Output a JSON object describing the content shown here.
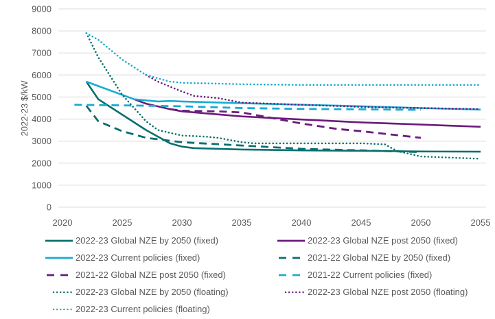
{
  "chart_data": {
    "type": "line",
    "title": "",
    "xlabel": "",
    "ylabel": "2022-23 $/kW",
    "xlim": [
      2020,
      2055
    ],
    "ylim": [
      0,
      9000
    ],
    "x_ticks": [
      "2020",
      "2025",
      "2030",
      "2035",
      "2040",
      "2045",
      "2050",
      "2055"
    ],
    "y_ticks": [
      "0",
      "1000",
      "2000",
      "3000",
      "4000",
      "5000",
      "6000",
      "7000",
      "8000",
      "9000"
    ],
    "grid": "horizontal",
    "legend_position": "bottom",
    "colors": {
      "dark_teal": "#0b6e6e",
      "light_blue": "#1aaad0",
      "purple": "#6a1b7c"
    },
    "series": [
      {
        "name": "2022-23 Global NZE by 2050 (fixed)",
        "color": "#0b6e6e",
        "style": "solid",
        "x": [
          2022,
          2023,
          2025,
          2027,
          2029,
          2030,
          2031,
          2035,
          2040,
          2045,
          2050,
          2055
        ],
        "values": [
          5700,
          4900,
          4200,
          3500,
          2900,
          2750,
          2680,
          2620,
          2580,
          2560,
          2530,
          2520
        ]
      },
      {
        "name": "2022-23 Global NZE post 2050 (fixed)",
        "color": "#6a1b7c",
        "style": "solid",
        "x": [
          2026,
          2027,
          2029,
          2030,
          2035,
          2040,
          2045,
          2050,
          2055
        ],
        "values": [
          4900,
          4700,
          4450,
          4350,
          4120,
          3980,
          3850,
          3750,
          3650
        ]
      },
      {
        "name": "2022-23 Current policies (fixed)",
        "color": "#1aaad0",
        "style": "solid",
        "x": [
          2022,
          2026,
          2028,
          2029,
          2030,
          2035,
          2040,
          2045,
          2050,
          2055
        ],
        "values": [
          5700,
          4900,
          4800,
          4820,
          4800,
          4720,
          4650,
          4580,
          4500,
          4430
        ]
      },
      {
        "name": "2021-22 Global NZE by 2050 (fixed)",
        "color": "#0b6e6e",
        "style": "dashed",
        "x": [
          2022,
          2023,
          2025,
          2027,
          2030,
          2035,
          2040,
          2045,
          2050
        ],
        "values": [
          4600,
          3900,
          3450,
          3150,
          2950,
          2800,
          2650,
          2580,
          2500
        ]
      },
      {
        "name": "2021-22 Global NZE post 2050 (fixed)",
        "color": "#6a1b7c",
        "style": "dashed",
        "x": [
          2029,
          2030,
          2033,
          2035,
          2037,
          2040,
          2043,
          2045,
          2050
        ],
        "values": [
          4450,
          4380,
          4350,
          4300,
          4100,
          3800,
          3550,
          3450,
          3150
        ]
      },
      {
        "name": "2021-22 Current policies (fixed)",
        "color": "#1aaad0",
        "style": "dashed",
        "x": [
          2021,
          2025,
          2030,
          2035,
          2040,
          2045,
          2050
        ],
        "values": [
          4650,
          4620,
          4580,
          4500,
          4460,
          4440,
          4420
        ]
      },
      {
        "name": "2022-23 Global NZE by 2050 (floating)",
        "color": "#0b6e6e",
        "style": "dotted",
        "x": [
          2022,
          2023,
          2025,
          2027,
          2028,
          2030,
          2032,
          2033,
          2035,
          2036,
          2040,
          2045,
          2047,
          2048,
          2050,
          2055
        ],
        "values": [
          7900,
          6800,
          5100,
          3900,
          3500,
          3250,
          3200,
          3150,
          2950,
          2900,
          2900,
          2900,
          2850,
          2550,
          2300,
          2200
        ]
      },
      {
        "name": "2022-23 Global NZE post 2050 (floating)",
        "color": "#6a1b7c",
        "style": "dotted",
        "x": [
          2027,
          2028,
          2030,
          2031,
          2033,
          2035,
          2040,
          2045,
          2050,
          2055
        ],
        "values": [
          6000,
          5700,
          5250,
          5050,
          4950,
          4750,
          4650,
          4550,
          4500,
          4450
        ]
      },
      {
        "name": "2022-23 Current policies (floating)",
        "color": "#1aaad0",
        "style": "dotted",
        "x": [
          2022,
          2023,
          2025,
          2027,
          2029,
          2030,
          2035,
          2040,
          2045,
          2050,
          2055
        ],
        "values": [
          7900,
          7600,
          6700,
          6000,
          5700,
          5650,
          5580,
          5550,
          5550,
          5550,
          5550
        ]
      }
    ]
  }
}
